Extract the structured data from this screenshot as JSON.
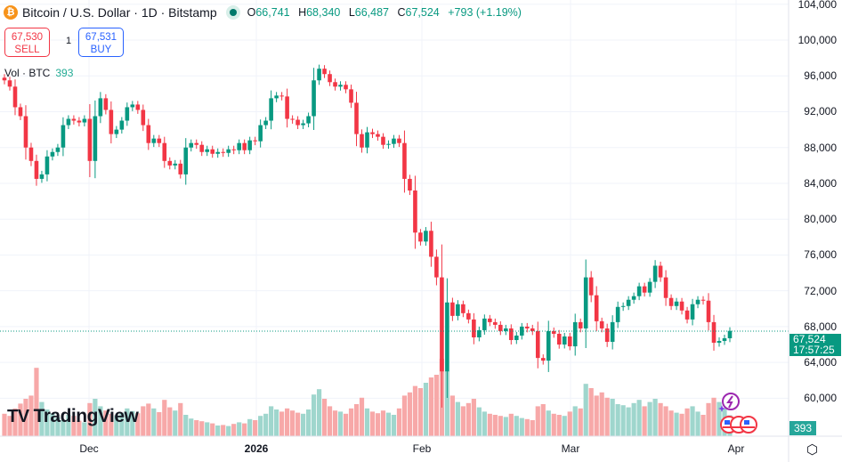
{
  "header": {
    "symbol_icon": "bitcoin-icon",
    "title": "Bitcoin / U.S. Dollar · 1D · Bitstamp",
    "status": "market-open-dot",
    "open_label": "O",
    "open": "66,741",
    "high_label": "H",
    "high": "68,340",
    "low_label": "L",
    "low": "66,487",
    "close_label": "C",
    "close": "67,524",
    "change": "+793 (+1.19%)"
  },
  "trade": {
    "sell_price": "67,530",
    "sell_label": "SELL",
    "quantity": "1",
    "buy_price": "67,531",
    "buy_label": "BUY"
  },
  "volume_legend": {
    "label": "Vol · BTC",
    "value": "393"
  },
  "price_axis": {
    "ticks": [
      "104,000",
      "100,000",
      "96,000",
      "92,000",
      "88,000",
      "84,000",
      "80,000",
      "76,000",
      "72,000",
      "68,000",
      "64,000",
      "60,000"
    ],
    "last_price": "67,524",
    "countdown": "17:57:25",
    "last_volume": "393"
  },
  "time_axis": {
    "ticks": [
      {
        "label": "Dec",
        "bold": false
      },
      {
        "label": "2026",
        "bold": true
      },
      {
        "label": "Feb",
        "bold": false
      },
      {
        "label": "Mar",
        "bold": false
      },
      {
        "label": "Apr",
        "bold": false
      }
    ]
  },
  "branding": {
    "logo": "TradingView"
  },
  "colors": {
    "up": "#089981",
    "down": "#f23645",
    "vol_up": "#9fd6cd",
    "vol_down": "#f7a8a8"
  },
  "chart_data": {
    "type": "candlestick",
    "interval": "1D",
    "ylim": [
      58000,
      105000
    ],
    "closes": [
      95500,
      94800,
      92500,
      91500,
      88000,
      86500,
      84500,
      85000,
      87000,
      87500,
      88000,
      90500,
      91200,
      91000,
      90800,
      91200,
      86500,
      91500,
      93500,
      92200,
      89500,
      90000,
      91000,
      92500,
      92800,
      92200,
      90500,
      88500,
      89000,
      88500,
      86500,
      86000,
      86200,
      85000,
      88000,
      88500,
      88300,
      87500,
      87800,
      87300,
      87500,
      87400,
      87800,
      87700,
      88500,
      87700,
      88800,
      88700,
      90500,
      91000,
      93500,
      93800,
      93700,
      91200,
      91100,
      90500,
      90700,
      91500,
      95500,
      96800,
      96200,
      95300,
      94800,
      95000,
      94500,
      93000,
      89500,
      88000,
      89700,
      89500,
      89200,
      88300,
      88400,
      89000,
      88500,
      84500,
      83200,
      78500,
      77500,
      78700,
      75800,
      73500,
      63000,
      70700,
      69200,
      70500,
      69500,
      68800,
      66800,
      67600,
      68900,
      68500,
      68200,
      67500,
      67800,
      66500,
      67000,
      68000,
      67800,
      67500,
      64500,
      64200,
      67500,
      67200,
      66000,
      66900,
      65800,
      68500,
      67800,
      73500,
      71500,
      68600,
      67800,
      66300,
      68500,
      70200,
      70300,
      71000,
      71400,
      72500,
      71800,
      73000,
      74800,
      73500,
      71200,
      70300,
      70800,
      69800,
      68800,
      70500,
      71000,
      70900,
      68500,
      66200,
      66400,
      66700,
      67524
    ],
    "volumes": [
      420,
      380,
      520,
      610,
      700,
      760,
      1280,
      640,
      500,
      430,
      350,
      300,
      400,
      380,
      290,
      260,
      620,
      700,
      560,
      480,
      420,
      390,
      440,
      520,
      470,
      430,
      560,
      610,
      520,
      450,
      680,
      540,
      480,
      620,
      400,
      330,
      300,
      280,
      260,
      240,
      200,
      210,
      190,
      230,
      260,
      240,
      320,
      300,
      380,
      420,
      560,
      500,
      460,
      520,
      480,
      440,
      420,
      500,
      780,
      880,
      700,
      560,
      480,
      460,
      420,
      520,
      600,
      720,
      520,
      460,
      430,
      480,
      440,
      400,
      520,
      760,
      820,
      940,
      900,
      1000,
      1100,
      1150,
      1450,
      1220,
      760,
      640,
      560,
      620,
      700,
      540,
      460,
      420,
      400,
      380,
      360,
      420,
      380,
      340,
      320,
      300,
      560,
      600,
      480,
      420,
      400,
      380,
      460,
      560,
      520,
      980,
      900,
      760,
      820,
      720,
      700,
      600,
      580,
      540,
      620,
      680,
      560,
      640,
      700,
      620,
      560,
      480,
      440,
      420,
      520,
      560,
      460,
      400,
      620,
      720,
      640,
      520,
      393
    ]
  }
}
